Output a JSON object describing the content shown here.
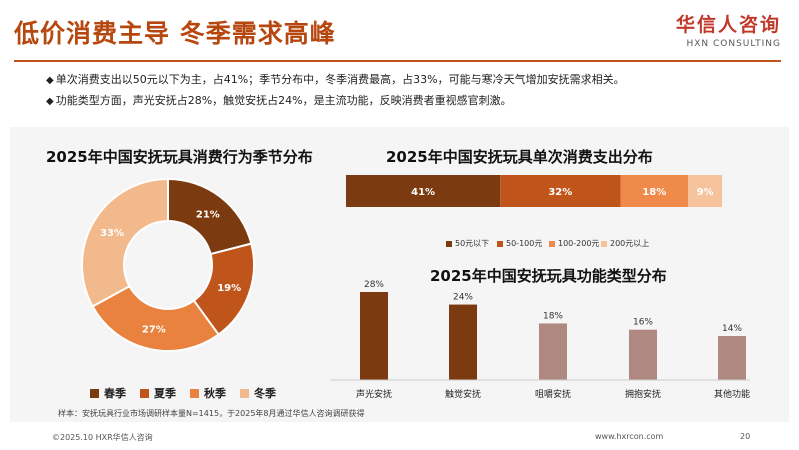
{
  "header": {
    "title": "低价消费主导 冬季需求高峰",
    "brand_cn": "华信人咨询",
    "brand_en": "HXN CONSULTING"
  },
  "bullets": [
    "单次消费支出以50元以下为主，占41%；季节分布中，冬季消费最高，占33%，可能与寒冷天气增加安抚需求相关。",
    "功能类型方面，声光安抚占28%，触觉安抚占24%，是主流功能，反映消费者重视感官刺激。"
  ],
  "note": "样本：安抚玩具行业市场调研样本量N=1415，于2025年8月通过华信人咨询调研获得",
  "footer": {
    "copyright": "©2025.10 HXR华信人咨询",
    "url": "www.hxrcon.com",
    "page": "20"
  },
  "chart_data": [
    {
      "type": "pie",
      "title": "2025年中国安抚玩具消费行为季节分布",
      "categories": [
        "春季",
        "夏季",
        "秋季",
        "冬季"
      ],
      "values": [
        21,
        19,
        27,
        33
      ],
      "labels": [
        "21%",
        "19%",
        "27%",
        "33%"
      ],
      "colors": [
        "#7b3a10",
        "#c0551c",
        "#e8823e",
        "#f2b98c"
      ],
      "legend": "bottom"
    },
    {
      "type": "bar",
      "title": "2025年中国安抚玩具单次消费支出分布",
      "orientation": "stacked-horizontal",
      "categories": [
        "50元以下",
        "50-100元",
        "100-200元",
        "200元以上"
      ],
      "values": [
        41,
        32,
        18,
        9
      ],
      "labels": [
        "41%",
        "32%",
        "18%",
        "9%"
      ],
      "colors": [
        "#7b3a10",
        "#c0551c",
        "#f08a4b",
        "#f6c39c"
      ],
      "legend": "bottom"
    },
    {
      "type": "bar",
      "title": "2025年中国安抚玩具功能类型分布",
      "categories": [
        "声光安抚",
        "触觉安抚",
        "咀嚼安抚",
        "拥抱安抚",
        "其他功能"
      ],
      "values": [
        28,
        24,
        18,
        16,
        14
      ],
      "labels": [
        "28%",
        "24%",
        "18%",
        "16%",
        "14%"
      ],
      "colors": [
        "#7b3a10",
        "#7b3a10",
        "#b08882",
        "#b08882",
        "#b08882"
      ]
    }
  ]
}
